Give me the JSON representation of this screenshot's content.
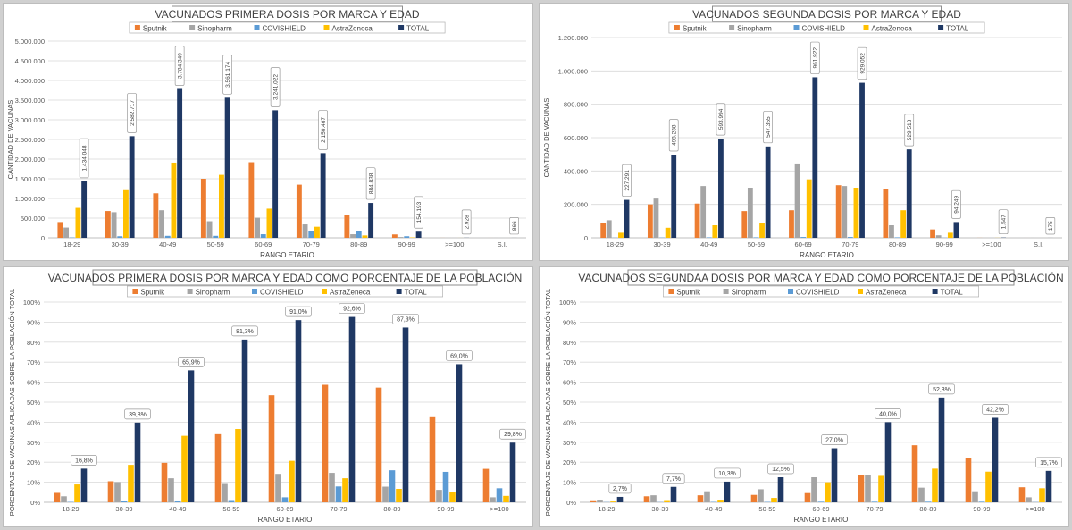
{
  "colors": {
    "Sputnik": "#ed7d31",
    "Sinopharm": "#a5a5a5",
    "COVISHIELD": "#5b9bd5",
    "AstraZeneca": "#ffc000",
    "TOTAL": "#1f3864"
  },
  "chart_data": [
    {
      "type": "bar",
      "title": "VACUNADOS PRIMERA DOSIS POR MARCA Y EDAD",
      "xlabel": "RANGO ETARIO",
      "ylabel": "CANTIDAD DE VACUNAS",
      "ylim": [
        0,
        5000000
      ],
      "yticks": [
        "0",
        "500.000",
        "1.000.000",
        "1.500.000",
        "2.000.000",
        "2.500.000",
        "3.000.000",
        "3.500.000",
        "4.000.000",
        "4.500.000",
        "5.000.000"
      ],
      "categories": [
        "18-29",
        "30-39",
        "40-49",
        "50-59",
        "60-69",
        "70-79",
        "80-89",
        "90-99",
        ">=100",
        "S.I."
      ],
      "legend_position": "top",
      "series": [
        {
          "name": "Sputnik",
          "values": [
            400000,
            680000,
            1130000,
            1500000,
            1920000,
            1350000,
            590000,
            85000,
            1200,
            300
          ]
        },
        {
          "name": "Sinopharm",
          "values": [
            260000,
            650000,
            700000,
            420000,
            510000,
            340000,
            90000,
            20000,
            600,
            200
          ]
        },
        {
          "name": "COVISHIELD",
          "values": [
            10000,
            40000,
            50000,
            50000,
            90000,
            180000,
            170000,
            40000,
            300,
            100
          ]
        },
        {
          "name": "AstraZeneca",
          "values": [
            760000,
            1210000,
            1910000,
            1600000,
            740000,
            280000,
            60000,
            10000,
            800,
            200
          ]
        },
        {
          "name": "TOTAL",
          "values": [
            1434048,
            2582717,
            3784349,
            3561174,
            3241022,
            2150467,
            884838,
            154193,
            2928,
            866
          ]
        }
      ],
      "total_labels": [
        "1.434.048",
        "2.582.717",
        "3.784.349",
        "3.561.174",
        "3.241.022",
        "2.150.467",
        "884.838",
        "154.193",
        "2.928",
        "866"
      ]
    },
    {
      "type": "bar",
      "title": "VACUNADOS SEGUNDA DOSIS POR MARCA Y EDAD",
      "xlabel": "RANGO ETARIO",
      "ylabel": "CANTIDAD DE VACUNAS",
      "ylim": [
        0,
        1200000
      ],
      "yticks": [
        "0",
        "200.000",
        "400.000",
        "600.000",
        "800.000",
        "1.000.000",
        "1.200.000"
      ],
      "categories": [
        "18-29",
        "30-39",
        "40-49",
        "50-59",
        "60-69",
        "70-79",
        "80-89",
        "90-99",
        ">=100",
        "S.I."
      ],
      "legend_position": "top",
      "series": [
        {
          "name": "Sputnik",
          "values": [
            90000,
            200000,
            205000,
            160000,
            165000,
            315000,
            290000,
            50000,
            400,
            50
          ]
        },
        {
          "name": "Sinopharm",
          "values": [
            105000,
            235000,
            310000,
            300000,
            445000,
            310000,
            75000,
            15000,
            300,
            30
          ]
        },
        {
          "name": "COVISHIELD",
          "values": [
            1000,
            2000,
            3000,
            3000,
            5000,
            5000,
            3000,
            1000,
            100,
            10
          ]
        },
        {
          "name": "AstraZeneca",
          "values": [
            30000,
            60000,
            75000,
            90000,
            350000,
            300000,
            165000,
            30000,
            500,
            40
          ]
        },
        {
          "name": "TOTAL",
          "values": [
            227291,
            498238,
            593994,
            547355,
            961922,
            929052,
            529513,
            94249,
            1547,
            175
          ]
        }
      ],
      "total_labels": [
        "227.291",
        "498.238",
        "593.994",
        "547.355",
        "961.922",
        "929.052",
        "529.513",
        "94.249",
        "1.547",
        "175"
      ]
    },
    {
      "type": "bar",
      "title": "VACUNADOS PRIMERA DOSIS POR MARCA Y EDAD COMO PORCENTAJE DE LA POBLACIÓN",
      "xlabel": "RANGO ETARIO",
      "ylabel": "PORCENTAJE DE VACUNAS APLICADAS SOBRE LA POBLACIÓN TOTAL",
      "ylim": [
        0,
        100
      ],
      "yticks": [
        "0%",
        "10%",
        "20%",
        "30%",
        "40%",
        "50%",
        "60%",
        "70%",
        "80%",
        "90%",
        "100%"
      ],
      "categories": [
        "18-29",
        "30-39",
        "40-49",
        "50-59",
        "60-69",
        "70-79",
        "80-89",
        "90-99",
        ">=100"
      ],
      "legend_position": "top",
      "series": [
        {
          "name": "Sputnik",
          "values": [
            4.7,
            10.5,
            19.7,
            34.0,
            53.5,
            58.7,
            57.3,
            42.5,
            16.7
          ]
        },
        {
          "name": "Sinopharm",
          "values": [
            3.0,
            10.1,
            12.0,
            9.6,
            14.2,
            14.7,
            7.8,
            6.2,
            2.5
          ]
        },
        {
          "name": "COVISHIELD",
          "values": [
            0.2,
            0.6,
            0.9,
            1.1,
            2.5,
            7.9,
            16.0,
            15.2,
            7.0
          ]
        },
        {
          "name": "AstraZeneca",
          "values": [
            8.9,
            18.7,
            33.2,
            36.6,
            20.7,
            12.0,
            6.7,
            5.2,
            3.2
          ]
        },
        {
          "name": "TOTAL",
          "values": [
            16.8,
            39.8,
            65.9,
            81.3,
            91.0,
            92.6,
            87.3,
            69.0,
            29.8
          ]
        }
      ],
      "total_labels": [
        "16,8%",
        "39,8%",
        "65,9%",
        "81,3%",
        "91,0%",
        "92,6%",
        "87,3%",
        "69,0%",
        "29,8%"
      ]
    },
    {
      "type": "bar",
      "title": "VACUNADOS SEGUNDAA DOSIS POR MARCA Y EDAD COMO PORCENTAJE DE LA POBLACIÓN",
      "xlabel": "RANGO ETARIO",
      "ylabel": "PORCENTAJE DE VACUNAS APLICADAS SOBRE LA POBLACIÓN TOTAL",
      "ylim": [
        0,
        100
      ],
      "yticks": [
        "0%",
        "10%",
        "20%",
        "30%",
        "40%",
        "50%",
        "60%",
        "70%",
        "80%",
        "90%",
        "100%"
      ],
      "categories": [
        "18-29",
        "30-39",
        "40-49",
        "50-59",
        "60-69",
        "70-79",
        "80-89",
        "90-99",
        ">=100"
      ],
      "legend_position": "top",
      "series": [
        {
          "name": "Sputnik",
          "values": [
            1.0,
            3.0,
            3.5,
            3.7,
            4.6,
            13.5,
            28.5,
            22.0,
            7.5
          ]
        },
        {
          "name": "Sinopharm",
          "values": [
            1.3,
            3.5,
            5.5,
            6.5,
            12.5,
            13.5,
            7.3,
            5.5,
            2.5
          ]
        },
        {
          "name": "COVISHIELD",
          "values": [
            0.1,
            0.1,
            0.2,
            0.2,
            0.3,
            0.3,
            0.3,
            0.3,
            0.1
          ]
        },
        {
          "name": "AstraZeneca",
          "values": [
            0.4,
            1.1,
            1.3,
            2.2,
            10.0,
            13.2,
            16.8,
            15.3,
            7.0
          ]
        },
        {
          "name": "TOTAL",
          "values": [
            2.7,
            7.7,
            10.3,
            12.5,
            27.0,
            40.0,
            52.3,
            42.2,
            15.7
          ]
        }
      ],
      "total_labels": [
        "2,7%",
        "7,7%",
        "10,3%",
        "12,5%",
        "27,0%",
        "40,0%",
        "52,3%",
        "42,2%",
        "15,7%"
      ]
    }
  ]
}
